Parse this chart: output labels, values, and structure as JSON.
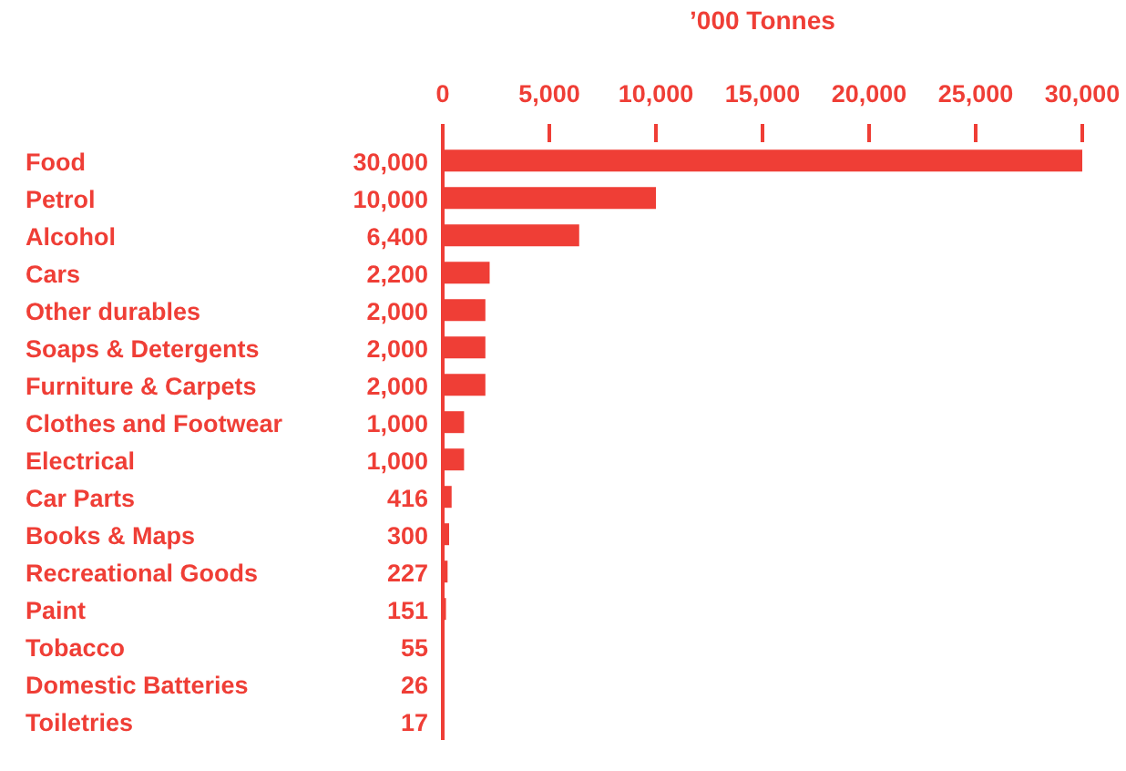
{
  "chart_data": {
    "type": "bar",
    "orientation": "horizontal",
    "xlabel": "’000 Tonnes",
    "categories": [
      "Food",
      "Petrol",
      "Alcohol",
      "Cars",
      "Other durables",
      "Soaps & Detergents",
      "Furniture & Carpets",
      "Clothes and Footwear",
      "Electrical",
      "Car Parts",
      "Books & Maps",
      "Recreational Goods",
      "Paint",
      "Tobacco",
      "Domestic Batteries",
      "Toiletries"
    ],
    "values": [
      30000,
      10000,
      6400,
      2200,
      2000,
      2000,
      2000,
      1000,
      1000,
      416,
      300,
      227,
      151,
      55,
      26,
      17
    ],
    "value_labels": [
      "30,000",
      "10,000",
      "6,400",
      "2,200",
      "2,000",
      "2,000",
      "2,000",
      "1,000",
      "1,000",
      "416",
      "300",
      "227",
      "151",
      "55",
      "26",
      "17"
    ],
    "color": "#ef3e36",
    "xlim": [
      0,
      30000
    ],
    "xticks": [
      0,
      {
        "value": 5000,
        "label": "5,000"
      },
      {
        "value": 10000,
        "label": "10,000"
      },
      {
        "value": 15000,
        "label": "15,000"
      },
      {
        "value": 20000,
        "label": "20,000"
      },
      {
        "value": 25000,
        "label": "25,000"
      },
      {
        "value": 30000,
        "label": "30,000"
      }
    ]
  }
}
